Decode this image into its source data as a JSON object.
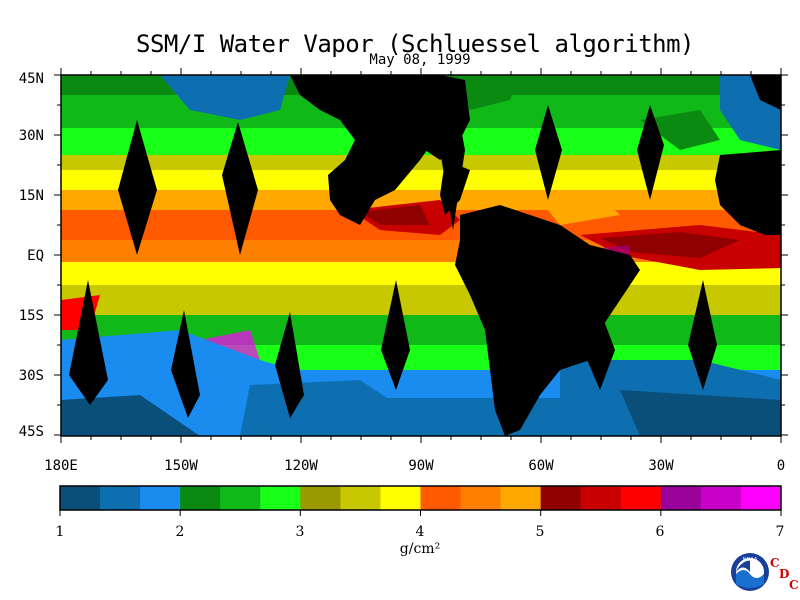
{
  "title": "SSM/I Water Vapor (Schluessel algorithm)",
  "subtitle": "May 08, 1999",
  "lat_labels": [
    "45N",
    "30N",
    "15N",
    "EQ",
    "15S",
    "30S",
    "45S"
  ],
  "lon_labels": [
    "180E",
    "150W",
    "120W",
    "90W",
    "60W",
    "30W",
    "0"
  ],
  "colorbar": {
    "ticks": [
      "1",
      "2",
      "3",
      "4",
      "5",
      "6",
      "7"
    ],
    "units": "g/cm²",
    "colors": [
      "#0a4f7a",
      "#0d6fb0",
      "#1a8cf0",
      "#0a8a10",
      "#10b818",
      "#18ff18",
      "#9a9a00",
      "#c8c800",
      "#ffff00",
      "#ff5a00",
      "#ff8000",
      "#ffa800",
      "#900000",
      "#c80000",
      "#ff0000",
      "#9a009a",
      "#c800c8",
      "#ff00ff"
    ]
  },
  "logo": {
    "text": "NOAA",
    "cdc_letters": [
      "C",
      "D",
      "C"
    ]
  }
}
